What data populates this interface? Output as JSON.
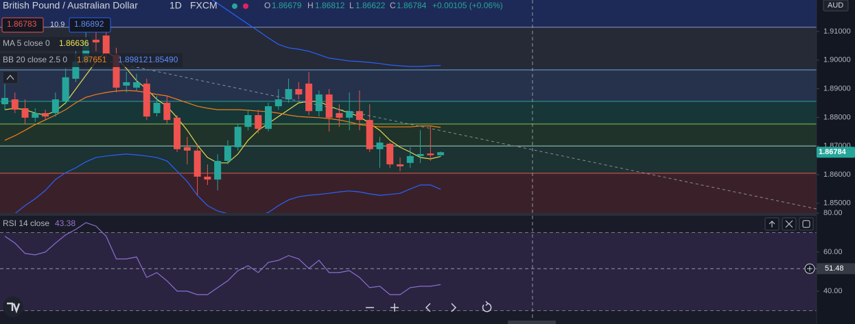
{
  "header": {
    "symbol": "British Pound / Australian Dollar",
    "interval": "1D",
    "source": "FXCM",
    "open_label": "O",
    "high_label": "H",
    "low_label": "L",
    "close_label": "C",
    "change": "+0.00105 (+0.06%)",
    "bid": "1.86783",
    "spread": "10.9",
    "ask": "1.86892",
    "currency": "AUD"
  },
  "chart_data": [
    {
      "type": "candlestick",
      "up_color": "#26a69a",
      "down_color": "#ef5350",
      "open": [
        1.8846,
        1.8863,
        1.8832,
        1.8799,
        1.8815,
        1.8815,
        1.8856,
        1.8935,
        1.8995,
        1.9071,
        1.9086,
        1.9019,
        1.8911,
        1.8904,
        1.8918,
        1.8815,
        1.8851,
        1.8799,
        1.8696,
        1.8684,
        1.8593,
        1.8583,
        1.8648,
        1.8696,
        1.8767,
        1.8808,
        1.876,
        1.8839,
        1.8863,
        1.8899,
        1.8918,
        1.8822,
        1.888,
        1.8815,
        1.8799,
        1.8822,
        1.8791,
        1.8689,
        1.8708,
        1.8636,
        1.8641,
        1.8665,
        1.8674,
        1.86679
      ],
      "high": [
        1.8923,
        1.8887,
        1.8863,
        1.8832,
        1.8827,
        1.8887,
        1.8971,
        1.9031,
        1.9102,
        1.9102,
        1.9102,
        1.9043,
        1.8959,
        1.8952,
        1.8935,
        1.8875,
        1.8875,
        1.8808,
        1.8732,
        1.8708,
        1.8636,
        1.8672,
        1.872,
        1.8779,
        1.8827,
        1.8827,
        1.8851,
        1.8899,
        1.8935,
        1.8923,
        1.8959,
        1.8894,
        1.8899,
        1.8846,
        1.8887,
        1.8894,
        1.8846,
        1.8732,
        1.8712,
        1.866,
        1.8696,
        1.8755,
        1.8772,
        1.86812
      ],
      "low": [
        1.8827,
        1.8815,
        1.8775,
        1.8784,
        1.8791,
        1.8803,
        1.8846,
        1.8923,
        1.8983,
        1.9031,
        1.9007,
        1.8887,
        1.8887,
        1.8894,
        1.8791,
        1.8803,
        1.8779,
        1.8679,
        1.8636,
        1.8528,
        1.8564,
        1.8545,
        1.8636,
        1.8684,
        1.8755,
        1.8744,
        1.8751,
        1.8827,
        1.8851,
        1.8863,
        1.8808,
        1.8803,
        1.8751,
        1.8767,
        1.8755,
        1.8755,
        1.8679,
        1.8624,
        1.8624,
        1.8612,
        1.8624,
        1.8641,
        1.8648,
        1.86622
      ],
      "close": [
        1.8868,
        1.8827,
        1.8799,
        1.8815,
        1.8803,
        1.8863,
        1.894,
        1.8995,
        1.9066,
        1.9062,
        1.9023,
        1.8904,
        1.8923,
        1.8923,
        1.8803,
        1.8851,
        1.8791,
        1.8689,
        1.8684,
        1.8593,
        1.8583,
        1.8648,
        1.8701,
        1.8767,
        1.8808,
        1.876,
        1.8839,
        1.8863,
        1.8899,
        1.888,
        1.8822,
        1.888,
        1.8799,
        1.8799,
        1.8822,
        1.8791,
        1.8689,
        1.8712,
        1.8636,
        1.8629,
        1.8665,
        1.8672,
        1.8668,
        1.86784
      ],
      "series": [
        {
          "name": "MA 5 close 0",
          "color": "#e6dc4c",
          "values": [
            1.8827,
            1.8832,
            1.8827,
            1.8815,
            1.8808,
            1.8822,
            1.8851,
            1.8899,
            1.8947,
            1.8995,
            1.9031,
            1.9007,
            1.8971,
            1.8928,
            1.8899,
            1.8863,
            1.8839,
            1.8799,
            1.8755,
            1.8703,
            1.866,
            1.8641,
            1.8641,
            1.8672,
            1.872,
            1.8755,
            1.8779,
            1.8803,
            1.8827,
            1.8851,
            1.8856,
            1.8856,
            1.8839,
            1.8827,
            1.8815,
            1.8803,
            1.8779,
            1.8755,
            1.872,
            1.8696,
            1.8679,
            1.866,
            1.8655,
            1.86636
          ]
        },
        {
          "name": "BB 20 close 2.5 0",
          "bands": [
            {
              "color": "#f57f17",
              "values": [
                1.872,
                1.8736,
                1.8755,
                1.8775,
                1.8791,
                1.8808,
                1.8827,
                1.8851,
                1.887,
                1.888,
                1.8887,
                1.8892,
                1.8894,
                1.8892,
                1.8887,
                1.888,
                1.8875,
                1.8863,
                1.8851,
                1.8839,
                1.8832,
                1.8827,
                1.8827,
                1.8827,
                1.8825,
                1.8822,
                1.882,
                1.8815,
                1.8808,
                1.8803,
                1.8801,
                1.8799,
                1.8796,
                1.8791,
                1.8784,
                1.8775,
                1.877,
                1.8767,
                1.8767,
                1.8767,
                1.8767,
                1.877,
                1.877,
                1.87651
              ]
            },
            {
              "color": "#2962ff",
              "values": [
                1.9234,
                1.9246,
                1.9258,
                1.927,
                1.9282,
                1.9294,
                1.9306,
                1.933,
                1.9342,
                1.9354,
                1.9358,
                1.9358,
                1.9354,
                1.9342,
                1.933,
                1.9318,
                1.9306,
                1.9294,
                1.927,
                1.9246,
                1.9222,
                1.9198,
                1.9174,
                1.915,
                1.9126,
                1.9102,
                1.9078,
                1.9055,
                1.9043,
                1.9038,
                1.9031,
                1.9019,
                1.9007,
                1.9002,
                1.8997,
                1.8995,
                1.8992,
                1.8988,
                1.8983,
                1.898,
                1.8978,
                1.8978,
                1.898,
                1.89812
              ]
            },
            {
              "color": "#2962ff",
              "last_label": "1.85490",
              "values": [
                1.8445,
                1.8464,
                1.8492,
                1.8516,
                1.8545,
                1.8583,
                1.8607,
                1.8624,
                1.8645,
                1.866,
                1.8665,
                1.8669,
                1.8672,
                1.8669,
                1.8665,
                1.866,
                1.8648,
                1.8612,
                1.8576,
                1.8528,
                1.8492,
                1.8473,
                1.8464,
                1.8457,
                1.8454,
                1.8457,
                1.8468,
                1.8492,
                1.8512,
                1.8523,
                1.8528,
                1.8531,
                1.8535,
                1.854,
                1.8543,
                1.854,
                1.8533,
                1.8528,
                1.8531,
                1.8535,
                1.855,
                1.8564,
                1.8564,
                1.8549
              ]
            }
          ]
        }
      ],
      "levels": [
        {
          "value": 1.9115,
          "color": "#8e97b8"
        },
        {
          "value": 1.8966,
          "color": "#6fa8dc"
        },
        {
          "value": 1.8856,
          "color": "#26a69a"
        },
        {
          "value": 1.8777,
          "color": "#8bc34a"
        },
        {
          "value": 1.87,
          "color": "#9fd5c8"
        },
        {
          "value": 1.8605,
          "color": "#ef5350"
        }
      ],
      "zone_colors": [
        "#1d2a57",
        "#262a36",
        "#26324c",
        "#173638",
        "#20332a",
        "#1c3233",
        "#3a2129"
      ],
      "ylim": [
        1.8466,
        1.921
      ],
      "yticks": [
        {
          "value": 1.91,
          "label": "1.91000"
        },
        {
          "value": 1.9,
          "label": "1.90000"
        },
        {
          "value": 1.89,
          "label": "1.89000"
        },
        {
          "value": 1.88,
          "label": "1.88000"
        },
        {
          "value": 1.87,
          "label": "1.87000"
        },
        {
          "value": 1.86,
          "label": "1.86000"
        },
        {
          "value": 1.85,
          "label": "1.85000"
        }
      ]
    },
    {
      "type": "line",
      "name": "RSI 14 close",
      "color": "#8c6fd1",
      "values": [
        68.1,
        64.6,
        59.3,
        58.6,
        60.0,
        64.6,
        68.8,
        71.6,
        75.1,
        73.3,
        68.1,
        56.5,
        56.5,
        57.5,
        47.0,
        49.5,
        45.3,
        40.0,
        40.0,
        38.2,
        38.2,
        41.8,
        45.3,
        50.5,
        53.0,
        49.5,
        54.7,
        55.8,
        58.2,
        56.5,
        51.6,
        55.8,
        49.5,
        49.5,
        50.5,
        47.0,
        41.8,
        42.5,
        38.2,
        38.2,
        41.8,
        42.5,
        42.5,
        43.38
      ],
      "band": [
        30,
        70
      ],
      "band_color": "#2a2440",
      "crosshair": 51.48,
      "ylim": [
        24.2,
        78.6
      ],
      "yticks": [
        {
          "value": 80,
          "label": "80.00"
        },
        {
          "value": 60,
          "label": "60.00"
        },
        {
          "value": 40,
          "label": "40.00"
        }
      ]
    }
  ]
}
